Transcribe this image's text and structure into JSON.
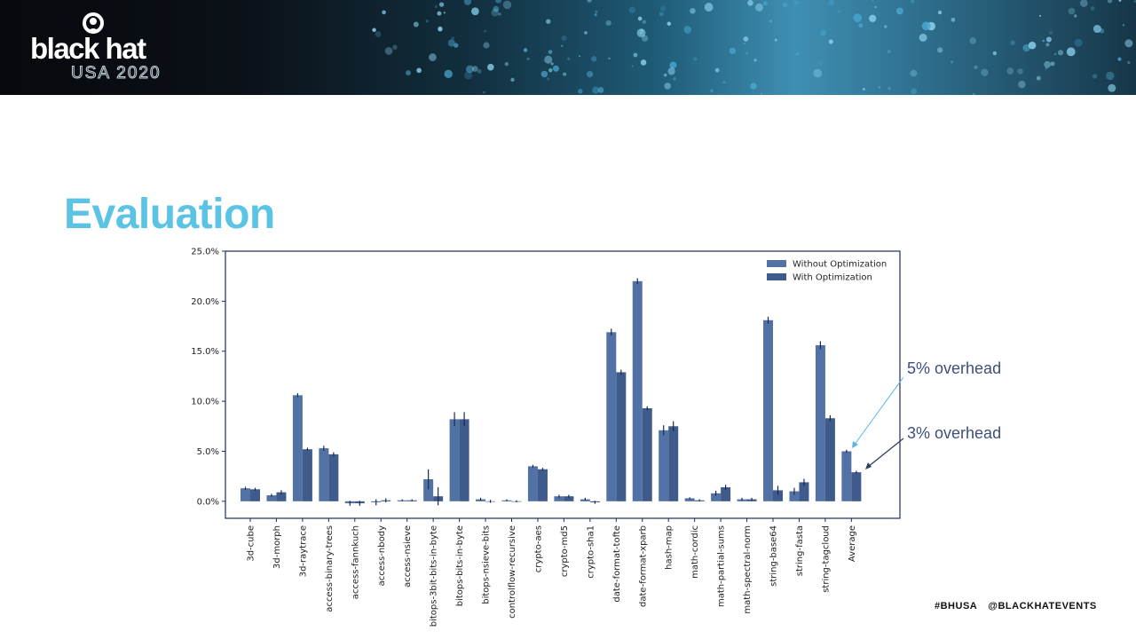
{
  "header": {
    "logo_word": "black hat",
    "logo_sub": "USA 2020"
  },
  "slide": {
    "title": "Evaluation",
    "notes": [
      "5% overhead",
      "3% overhead"
    ]
  },
  "footer": {
    "hashtag": "#BHUSA",
    "handle": "@BLACKHATEVENTS"
  },
  "colors": {
    "accent_title": "#5bc3e4",
    "without_optimization": "#5272a6",
    "with_optimization": "#3f5b8c",
    "note_text": "#3d4f7a",
    "arrow_5": "#5bb6dc",
    "arrow_3": "#2e3f62"
  },
  "chart_data": {
    "type": "bar",
    "title": "",
    "xlabel": "",
    "ylabel": "",
    "ylim": [
      -1.7,
      25.0
    ],
    "yticks": [
      "0.0%",
      "5.0%",
      "10.0%",
      "15.0%",
      "20.0%",
      "25.0%"
    ],
    "ytick_values": [
      0,
      5,
      10,
      15,
      20,
      25
    ],
    "legend_position": "top-right",
    "categories": [
      "3d-cube",
      "3d-morph",
      "3d-raytrace",
      "access-binary-trees",
      "access-fannkuch",
      "access-nbody",
      "access-nsieve",
      "bitops-3bit-bits-in-byte",
      "bitops-bits-in-byte",
      "bitops-nsieve-bits",
      "controlflow-recursive",
      "crypto-aes",
      "crypto-md5",
      "crypto-sha1",
      "date-format-tofte",
      "date-format-xparb",
      "hash-map",
      "math-cordic",
      "math-partial-sums",
      "math-spectral-norm",
      "string-base64",
      "string-fasta",
      "string-tagcloud",
      "Average"
    ],
    "series": [
      {
        "name": "Without Optimization",
        "values": [
          1.3,
          0.6,
          10.6,
          5.3,
          -0.2,
          -0.1,
          0.1,
          2.2,
          8.2,
          0.2,
          0.1,
          3.5,
          0.5,
          0.2,
          16.9,
          22.0,
          7.1,
          0.3,
          0.8,
          0.2,
          18.1,
          1.0,
          15.6,
          5.0
        ],
        "errors": [
          0.15,
          0.15,
          0.2,
          0.25,
          0.25,
          0.3,
          0.1,
          1.0,
          0.7,
          0.15,
          0.1,
          0.15,
          0.15,
          0.15,
          0.35,
          0.3,
          0.5,
          0.1,
          0.25,
          0.15,
          0.35,
          0.35,
          0.4,
          0.15
        ]
      },
      {
        "name": "With Optimization",
        "values": [
          1.2,
          0.9,
          5.2,
          4.7,
          -0.2,
          0.1,
          0.1,
          0.5,
          8.2,
          0.0,
          0.0,
          3.2,
          0.5,
          -0.1,
          12.9,
          9.3,
          7.5,
          0.1,
          1.4,
          0.2,
          1.1,
          1.9,
          8.3,
          2.9
        ],
        "errors": [
          0.15,
          0.2,
          0.15,
          0.2,
          0.25,
          0.2,
          0.1,
          0.9,
          0.7,
          0.15,
          0.1,
          0.15,
          0.15,
          0.15,
          0.25,
          0.2,
          0.5,
          0.1,
          0.25,
          0.15,
          0.45,
          0.35,
          0.3,
          0.15
        ]
      }
    ]
  }
}
